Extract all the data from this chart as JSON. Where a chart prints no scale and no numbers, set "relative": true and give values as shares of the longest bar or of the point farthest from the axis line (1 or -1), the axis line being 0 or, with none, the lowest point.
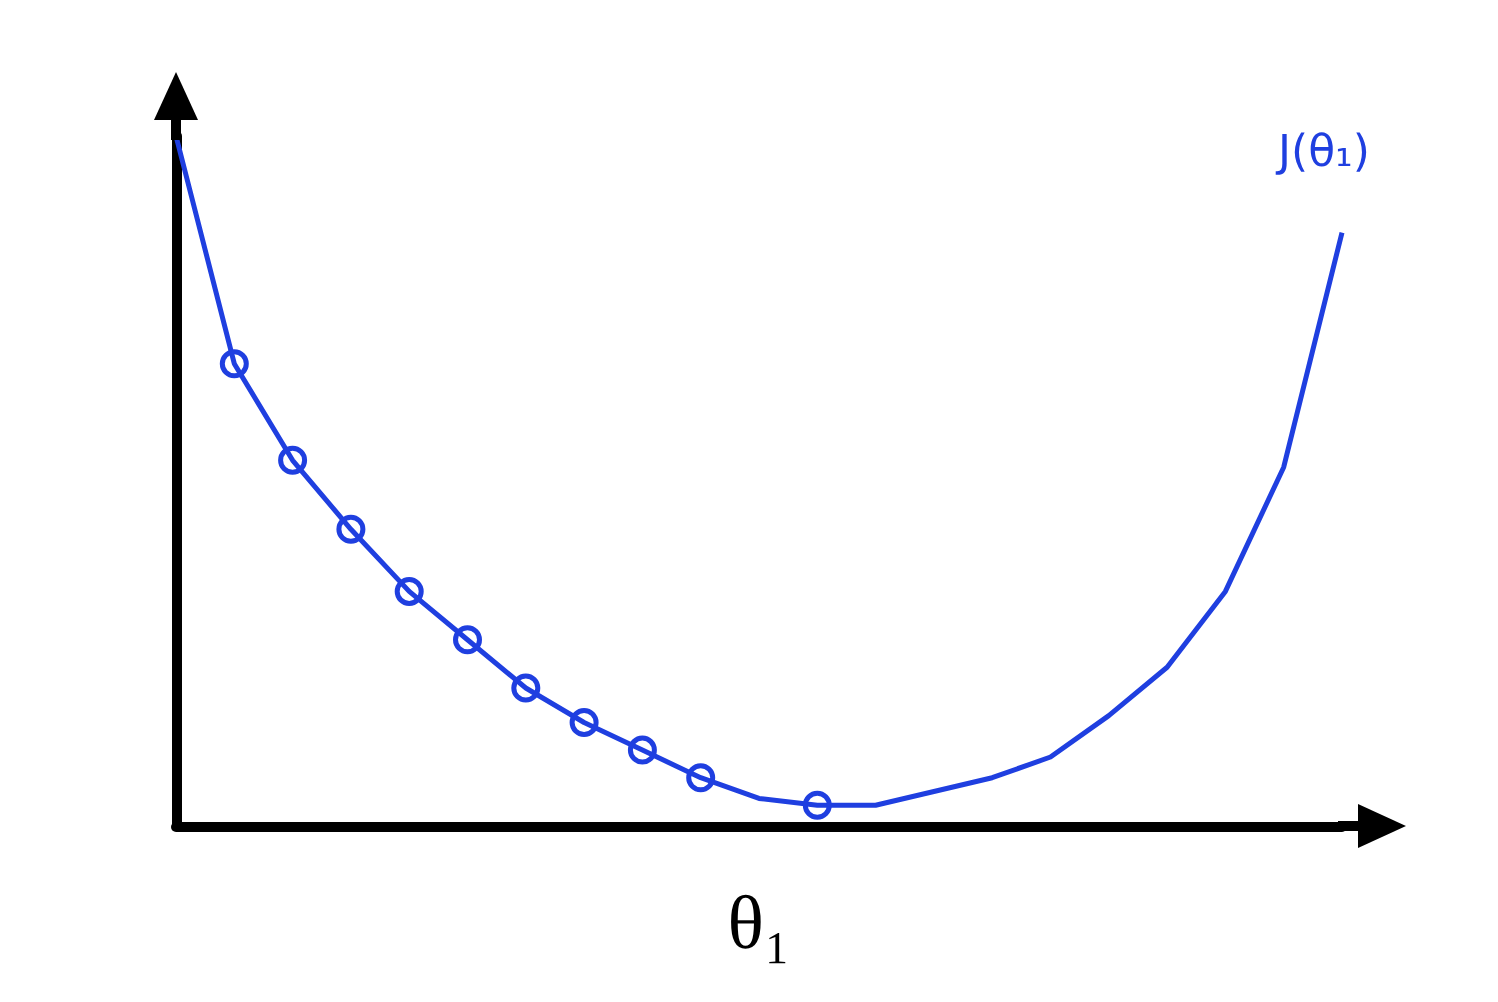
{
  "chart_data": {
    "type": "line",
    "relative": true,
    "xlabel": "θ₁",
    "legend": false,
    "grid": false,
    "categories": [
      null,
      null,
      null,
      null,
      null,
      null,
      null,
      null,
      null,
      null,
      null,
      null,
      null,
      null,
      null,
      null,
      null,
      null,
      null,
      null,
      null
    ],
    "series": [
      {
        "name": "J(θ₁)",
        "color": "#1f3fe0",
        "values": [
          1,
          0.67,
          0.53,
          0.43,
          0.34,
          0.27,
          0.2,
          0.15,
          0.11,
          0.07,
          0.04,
          0.03,
          0.03,
          0.05,
          0.07,
          0.1,
          0.16,
          0.23,
          0.34,
          0.52,
          0.86
        ]
      }
    ]
  }
}
